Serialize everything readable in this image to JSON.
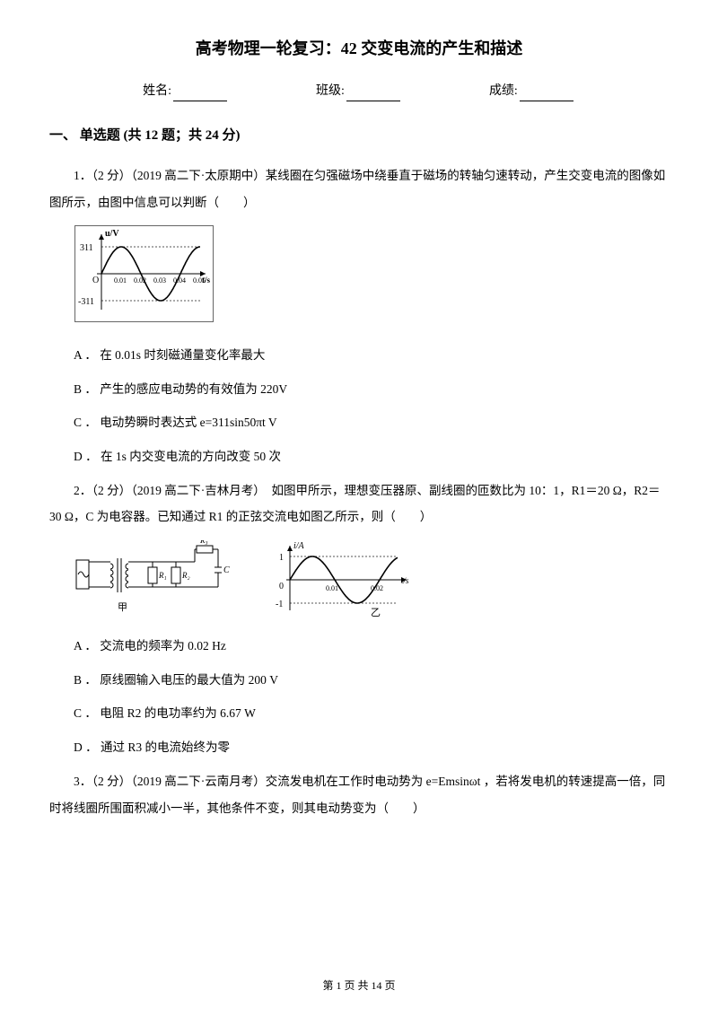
{
  "title": "高考物理一轮复习：42 交变电流的产生和描述",
  "info": {
    "name_label": "姓名:",
    "class_label": "班级:",
    "score_label": "成绩:"
  },
  "section": "一、 单选题 (共 12 题；共 24 分)",
  "q1": {
    "stem": "1．（2 分）（2019 高二下·太原期中）某线圈在匀强磁场中绕垂直于磁场的转轴匀速转动，产生交变电流的图像如图所示，由图中信息可以判断（　　）",
    "fig": {
      "type": "line",
      "ylabel": "u/V",
      "xlabel": "t/s",
      "amplitude": 311,
      "period": 0.04,
      "xticks": [
        "0.01",
        "0.02",
        "0.03",
        "0.04",
        "0.05"
      ],
      "yticks_top": "311",
      "yticks_bot": "-311",
      "curve_color": "#000000",
      "axis_color": "#000000",
      "dash_color": "#555555",
      "bg": "#ffffff",
      "box_stroke": "#666666"
    },
    "A": "A ． 在 0.01s 时刻磁通量变化率最大",
    "B": "B ． 产生的感应电动势的有效值为 220V",
    "C": "C ． 电动势瞬时表达式 e=311sin50πt V",
    "D": "D ． 在 1s 内交变电流的方向改变 50 次"
  },
  "q2": {
    "stem": "2．（2 分）（2019 高二下·吉林月考）　如图甲所示，理想变压器原、副线圈的匝数比为 10：1，R1＝20 Ω，R2＝30 Ω，C 为电容器。已知通过 R1 的正弦交流电如图乙所示，则（　　）",
    "circuit": {
      "labels": {
        "R1": "R₁",
        "R2": "R₂",
        "R3": "R₃",
        "C": "C",
        "cap_jia": "甲"
      },
      "stroke": "#000000"
    },
    "graph": {
      "type": "line",
      "ylabel": "i/A",
      "xlabel": "t/s",
      "amplitude": 1,
      "period": 0.02,
      "xticks": [
        "0.01",
        "0.02"
      ],
      "yticks_top": "1",
      "yticks_bot": "-1",
      "cap_yi": "乙",
      "curve_color": "#000000",
      "axis_color": "#000000",
      "dash_color": "#555555"
    },
    "A": "A ． 交流电的频率为 0.02 Hz",
    "B": "B ． 原线圈输入电压的最大值为 200 V",
    "C": "C ． 电阻 R2 的电功率约为 6.67 W",
    "D": "D ． 通过 R3 的电流始终为零"
  },
  "q3": {
    "stem": "3．（2 分）（2019 高二下·云南月考）交流发电机在工作时电动势为 e=Emsinωt ，若将发电机的转速提高一倍，同时将线圈所围面积减小一半，其他条件不变，则其电动势变为（　　）"
  },
  "footer": {
    "text": "第 1 页 共 14 页"
  }
}
